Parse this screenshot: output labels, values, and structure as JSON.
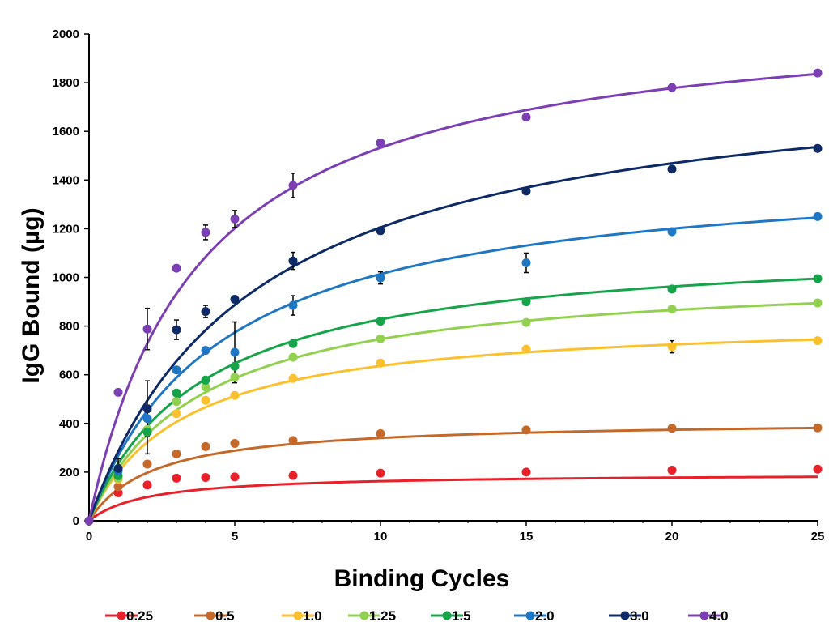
{
  "chart_data": {
    "type": "scatter",
    "title": "",
    "xlabel": "Binding Cycles",
    "ylabel": "IgG Bound (µg)",
    "xlim": [
      0,
      25
    ],
    "ylim": [
      0,
      2000
    ],
    "x_ticks": [
      "0",
      "5",
      "10",
      "15",
      "20",
      "25"
    ],
    "y_ticks": [
      "0",
      "200",
      "400",
      "600",
      "800",
      "1000",
      "1200",
      "1400",
      "1600",
      "1800",
      "2000"
    ],
    "grid": false,
    "legend_position": "bottom",
    "x": [
      0,
      1,
      2,
      3,
      4,
      5,
      7,
      10,
      15,
      20,
      25
    ],
    "series": [
      {
        "name": "0.25",
        "color": "#e8202a",
        "points": [
          [
            0,
            0
          ],
          [
            1,
            115
          ],
          [
            2,
            147
          ],
          [
            3,
            175
          ],
          [
            4,
            178
          ],
          [
            5,
            180
          ],
          [
            7,
            186
          ],
          [
            10,
            196
          ],
          [
            15,
            200
          ],
          [
            20,
            208
          ],
          [
            25,
            212
          ]
        ],
        "fit": [
          195,
          2.0
        ]
      },
      {
        "name": "0.5",
        "color": "#c5692b",
        "points": [
          [
            0,
            0
          ],
          [
            1,
            140
          ],
          [
            2,
            233
          ],
          [
            3,
            275
          ],
          [
            4,
            305
          ],
          [
            5,
            318
          ],
          [
            7,
            330
          ],
          [
            10,
            358
          ],
          [
            15,
            373
          ],
          [
            20,
            380
          ],
          [
            25,
            382
          ]
        ],
        "fit": [
          415,
          2.2
        ]
      },
      {
        "name": "1.0",
        "color": "#fbc02d",
        "points": [
          [
            0,
            0
          ],
          [
            1,
            170
          ],
          [
            2,
            365
          ],
          [
            3,
            440
          ],
          [
            4,
            495
          ],
          [
            5,
            515
          ],
          [
            7,
            585
          ],
          [
            10,
            648
          ],
          [
            15,
            705
          ],
          [
            20,
            715
          ],
          [
            25,
            740
          ]
        ],
        "fit": [
          840,
          3.2
        ]
      },
      {
        "name": "1.25",
        "color": "#92d050",
        "points": [
          [
            0,
            0
          ],
          [
            1,
            175
          ],
          [
            2,
            375
          ],
          [
            3,
            490
          ],
          [
            4,
            550
          ],
          [
            5,
            590
          ],
          [
            7,
            672
          ],
          [
            10,
            748
          ],
          [
            15,
            815
          ],
          [
            20,
            870
          ],
          [
            25,
            895
          ]
        ],
        "fit": [
          1030,
          3.8
        ]
      },
      {
        "name": "1.5",
        "color": "#16a34a",
        "points": [
          [
            0,
            0
          ],
          [
            1,
            185
          ],
          [
            2,
            365
          ],
          [
            3,
            525
          ],
          [
            4,
            578
          ],
          [
            5,
            635
          ],
          [
            7,
            728
          ],
          [
            10,
            820
          ],
          [
            15,
            900
          ],
          [
            20,
            952
          ],
          [
            25,
            995
          ]
        ],
        "fit": [
          1150,
          3.9
        ]
      },
      {
        "name": "2.0",
        "color": "#1f77c4",
        "points": [
          [
            0,
            0
          ],
          [
            1,
            205
          ],
          [
            2,
            420
          ],
          [
            3,
            620
          ],
          [
            4,
            700
          ],
          [
            5,
            692
          ],
          [
            7,
            885
          ],
          [
            10,
            998
          ],
          [
            15,
            1060
          ],
          [
            20,
            1188
          ],
          [
            25,
            1250
          ]
        ],
        "fit": [
          1470,
          4.5
        ]
      },
      {
        "name": "3.0",
        "color": "#0d2a66",
        "points": [
          [
            0,
            0
          ],
          [
            1,
            215
          ],
          [
            2,
            460
          ],
          [
            3,
            785
          ],
          [
            4,
            860
          ],
          [
            5,
            910
          ],
          [
            7,
            1068
          ],
          [
            10,
            1192
          ],
          [
            15,
            1355
          ],
          [
            20,
            1445
          ],
          [
            25,
            1530
          ]
        ],
        "fit": [
          1880,
          5.6
        ]
      },
      {
        "name": "4.0",
        "color": "#7b3fb3",
        "points": [
          [
            0,
            0
          ],
          [
            1,
            528
          ],
          [
            2,
            788
          ],
          [
            3,
            1038
          ],
          [
            4,
            1185
          ],
          [
            5,
            1240
          ],
          [
            7,
            1378
          ],
          [
            10,
            1553
          ],
          [
            15,
            1658
          ],
          [
            20,
            1780
          ],
          [
            25,
            1840
          ]
        ],
        "fit": [
          2115,
          3.8
        ]
      }
    ],
    "error_bars": [
      {
        "series": "4.0",
        "x": 2,
        "y": 788,
        "err": 85
      },
      {
        "series": "4.0",
        "x": 4,
        "y": 1185,
        "err": 30
      },
      {
        "series": "4.0",
        "x": 5,
        "y": 1240,
        "err": 35
      },
      {
        "series": "4.0",
        "x": 7,
        "y": 1378,
        "err": 50
      },
      {
        "series": "3.0",
        "x": 2,
        "y": 460,
        "err": 115
      },
      {
        "series": "3.0",
        "x": 3,
        "y": 785,
        "err": 40
      },
      {
        "series": "3.0",
        "x": 4,
        "y": 860,
        "err": 25
      },
      {
        "series": "3.0",
        "x": 7,
        "y": 1068,
        "err": 35
      },
      {
        "series": "2.0",
        "x": 5,
        "y": 692,
        "err": 125
      },
      {
        "series": "2.0",
        "x": 7,
        "y": 885,
        "err": 40
      },
      {
        "series": "2.0",
        "x": 10,
        "y": 998,
        "err": 25
      },
      {
        "series": "2.0",
        "x": 15,
        "y": 1060,
        "err": 40
      },
      {
        "series": "1.25",
        "x": 2,
        "y": 375,
        "err": 100
      },
      {
        "series": "1.0",
        "x": 20,
        "y": 715,
        "err": 25
      },
      {
        "series": "3.0",
        "x": 1,
        "y": 215,
        "err": 40
      }
    ]
  }
}
